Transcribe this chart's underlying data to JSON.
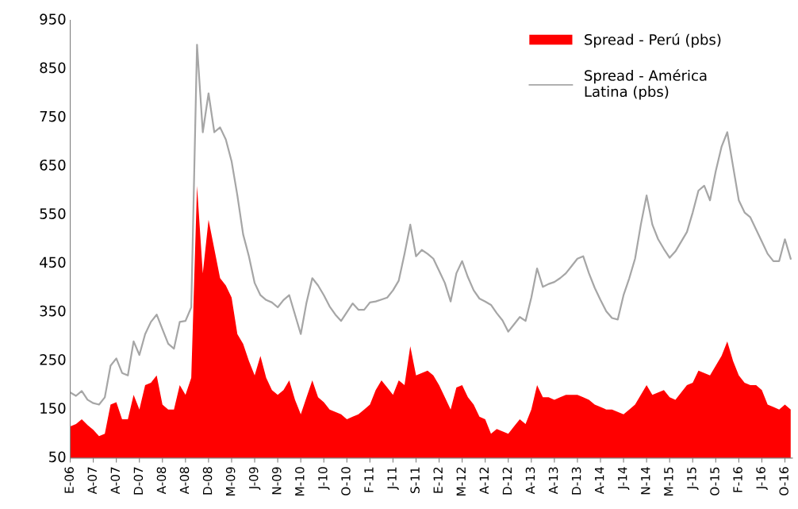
{
  "chart_data": {
    "type": "area",
    "categories": [
      "E-06",
      null,
      null,
      null,
      "A-07",
      null,
      null,
      null,
      "A-07",
      null,
      null,
      null,
      "D-07",
      null,
      null,
      null,
      "A-08",
      null,
      null,
      null,
      "A-08",
      null,
      null,
      null,
      "D-08",
      null,
      null,
      null,
      "M-09",
      null,
      null,
      null,
      "J-09",
      null,
      null,
      null,
      "N-09",
      null,
      null,
      null,
      "M-10",
      null,
      null,
      null,
      "J-10",
      null,
      null,
      null,
      "O-10",
      null,
      null,
      null,
      "F-11",
      null,
      null,
      null,
      "J-11",
      null,
      null,
      null,
      "S-11",
      null,
      null,
      null,
      "E-12",
      null,
      null,
      null,
      "M-12",
      null,
      null,
      null,
      "A-12",
      null,
      null,
      null,
      "D-12",
      null,
      null,
      null,
      "A-13",
      null,
      null,
      null,
      "A-13",
      null,
      null,
      null,
      "D-13",
      null,
      null,
      null,
      "A-14",
      null,
      null,
      null,
      "J-14",
      null,
      null,
      null,
      "N-14",
      null,
      null,
      null,
      "M-15",
      null,
      null,
      null,
      "J-15",
      null,
      null,
      null,
      "O-15",
      null,
      null,
      null,
      "F-16",
      null,
      null,
      null,
      "J-16",
      null,
      null,
      null,
      "O-16",
      null
    ],
    "ylim": [
      50,
      950
    ],
    "yticks": [
      50,
      150,
      250,
      350,
      450,
      550,
      650,
      750,
      850,
      950
    ],
    "grid": false,
    "legend": "top right",
    "series": [
      {
        "name": "Spread - Perú (pbs)",
        "color": "#ff0000",
        "values": [
          115,
          120,
          130,
          118,
          108,
          95,
          100,
          160,
          165,
          130,
          130,
          180,
          150,
          200,
          205,
          220,
          160,
          150,
          150,
          200,
          180,
          215,
          610,
          430,
          540,
          480,
          420,
          405,
          380,
          305,
          285,
          250,
          220,
          260,
          215,
          190,
          180,
          190,
          210,
          170,
          140,
          175,
          210,
          175,
          165,
          150,
          145,
          140,
          130,
          135,
          140,
          150,
          160,
          190,
          210,
          195,
          180,
          210,
          200,
          280,
          220,
          225,
          230,
          220,
          200,
          175,
          150,
          195,
          200,
          175,
          160,
          135,
          130,
          100,
          110,
          105,
          100,
          115,
          130,
          120,
          150,
          200,
          175,
          175,
          170,
          175,
          180,
          180,
          180,
          175,
          170,
          160,
          155,
          150,
          150,
          145,
          140,
          150,
          160,
          180,
          200,
          180,
          185,
          190,
          175,
          170,
          185,
          200,
          205,
          230,
          225,
          220,
          240,
          260,
          290,
          250,
          220,
          205,
          200,
          200,
          190,
          160,
          155,
          150,
          160,
          150
        ]
      },
      {
        "name": "Spread - América\nLatina (pbs)",
        "type": "line",
        "color": "#a6a6a6",
        "values": [
          185,
          178,
          188,
          170,
          163,
          160,
          175,
          240,
          255,
          225,
          220,
          290,
          262,
          305,
          330,
          345,
          315,
          285,
          275,
          330,
          332,
          360,
          900,
          720,
          800,
          720,
          730,
          705,
          660,
          590,
          510,
          465,
          410,
          385,
          375,
          370,
          360,
          375,
          385,
          345,
          305,
          370,
          420,
          405,
          385,
          362,
          345,
          332,
          350,
          368,
          355,
          355,
          370,
          372,
          376,
          380,
          395,
          415,
          470,
          530,
          465,
          478,
          470,
          460,
          435,
          410,
          372,
          430,
          455,
          422,
          395,
          378,
          372,
          365,
          348,
          333,
          310,
          325,
          340,
          332,
          380,
          440,
          402,
          408,
          412,
          420,
          430,
          445,
          460,
          465,
          430,
          400,
          375,
          352,
          338,
          335,
          385,
          420,
          460,
          530,
          590,
          530,
          500,
          480,
          462,
          475,
          495,
          515,
          555,
          600,
          610,
          580,
          640,
          690,
          720,
          650,
          580,
          555,
          545,
          520,
          495,
          470,
          455,
          455,
          500,
          460
        ]
      }
    ]
  }
}
